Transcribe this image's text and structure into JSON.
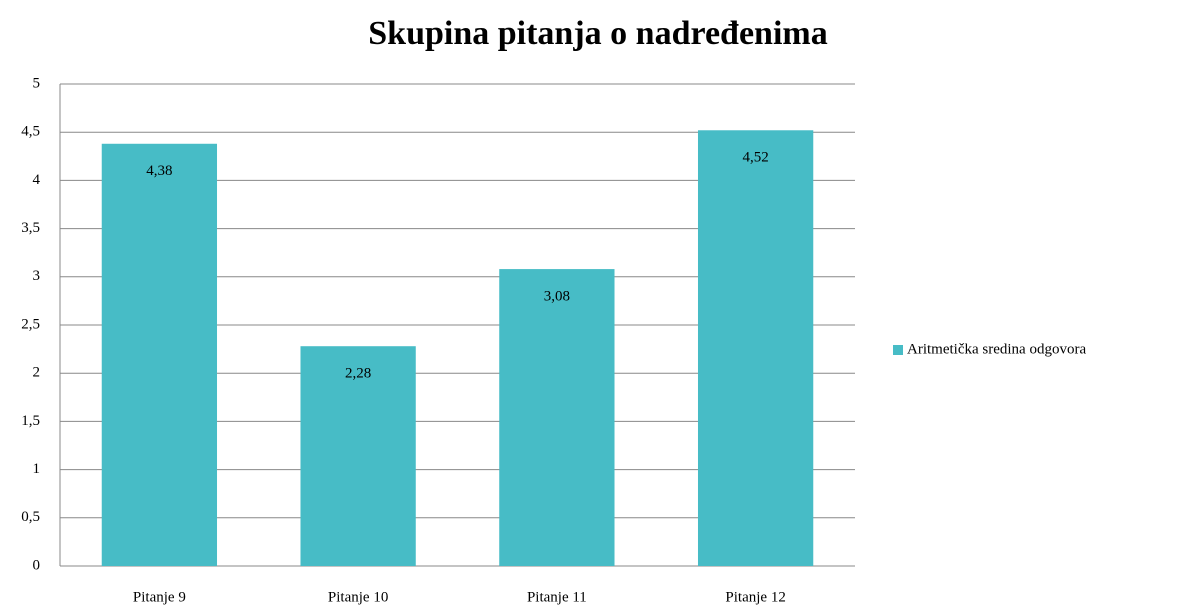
{
  "chart_data": {
    "type": "bar",
    "title": "Skupina pitanja o nadređenima",
    "categories": [
      "Pitanje 9",
      "Pitanje 10",
      "Pitanje 11",
      "Pitanje 12"
    ],
    "series": [
      {
        "name": "Aritmetička sredina odgovora",
        "color": "#47bcc6",
        "values": [
          4.38,
          2.28,
          3.08,
          4.52
        ],
        "value_labels": [
          "4,38",
          "2,28",
          "3,08",
          "4,52"
        ]
      }
    ],
    "ylim": [
      0,
      5
    ],
    "yticks": [
      0,
      {
        "value": 0.5,
        "label": "0,5"
      },
      1,
      {
        "value": 1.5,
        "label": "1,5"
      },
      2,
      {
        "value": 2.5,
        "label": "2,5"
      },
      3,
      {
        "value": 3.5,
        "label": "3,5"
      },
      4,
      {
        "value": 4.5,
        "label": "4,5"
      },
      5
    ],
    "grid": true,
    "legend": "right"
  }
}
